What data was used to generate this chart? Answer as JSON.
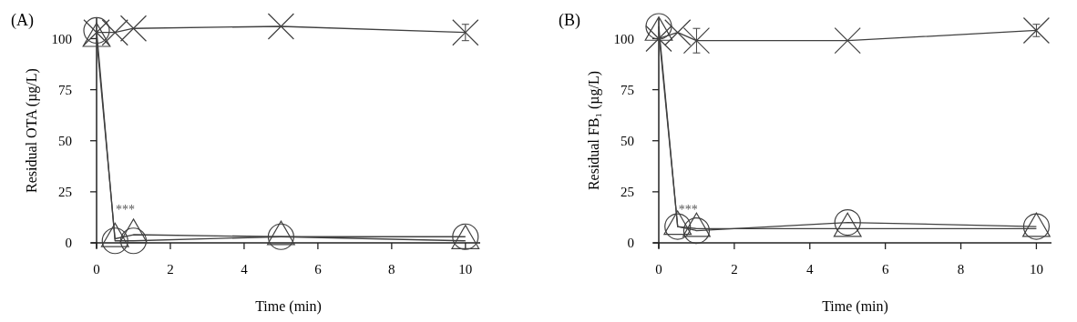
{
  "chart_data": [
    {
      "type": "line",
      "title": "(A)",
      "xlabel": "Time (min)",
      "ylabel": "Residual OTA (µg/L)",
      "x": [
        0,
        0.5,
        1,
        5,
        10
      ],
      "xlim": [
        0,
        10.4
      ],
      "xticks": [
        0,
        2,
        4,
        6,
        8,
        10
      ],
      "ylim": [
        0,
        110
      ],
      "yticks": [
        0,
        25,
        50,
        75,
        100
      ],
      "grid": false,
      "series": [
        {
          "color": "#404040",
          "marker": "cross",
          "values": [
            103,
            103,
            105,
            106,
            103
          ],
          "errors": [
            null,
            null,
            null,
            null,
            4
          ]
        },
        {
          "color": "#404040",
          "marker": "circle",
          "values": [
            104,
            1,
            1,
            3,
            3
          ]
        },
        {
          "color": "#404040",
          "marker": "triangle",
          "values": [
            100,
            2,
            4,
            3,
            1
          ]
        }
      ],
      "annotations": [
        "***"
      ]
    },
    {
      "type": "line",
      "title": "(B)",
      "xlabel": "Time (min)",
      "ylabel": "Residual FB₁ (µg/L)",
      "x": [
        0,
        0.5,
        1,
        5,
        10
      ],
      "xlim": [
        0,
        10.4
      ],
      "xticks": [
        0,
        2,
        4,
        6,
        8,
        10
      ],
      "ylim": [
        0,
        110
      ],
      "yticks": [
        0,
        25,
        50,
        75,
        100
      ],
      "grid": false,
      "series": [
        {
          "color": "#404040",
          "marker": "cross",
          "values": [
            100,
            103,
            99,
            99,
            104
          ],
          "errors": [
            null,
            null,
            6,
            null,
            3
          ]
        },
        {
          "color": "#404040",
          "marker": "circle",
          "values": [
            106,
            8,
            6,
            10,
            8
          ]
        },
        {
          "color": "#404040",
          "marker": "triangle",
          "values": [
            103,
            8,
            7,
            7,
            7
          ]
        }
      ],
      "annotations": [
        "***"
      ]
    }
  ]
}
